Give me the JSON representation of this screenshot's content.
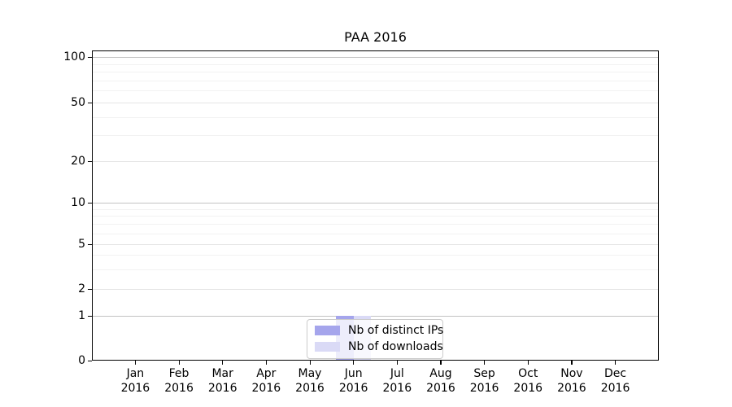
{
  "chart_data": {
    "type": "bar",
    "title": "PAA 2016",
    "categories": [
      "Jan 2016",
      "Feb 2016",
      "Mar 2016",
      "Apr 2016",
      "May 2016",
      "Jun 2016",
      "Jul 2016",
      "Aug 2016",
      "Sep 2016",
      "Oct 2016",
      "Nov 2016",
      "Dec 2016"
    ],
    "series": [
      {
        "name": "Nb of distinct IPs",
        "color": "#a5a5ec",
        "values": [
          0,
          0,
          0,
          0,
          0,
          1,
          0,
          0,
          0,
          0,
          0,
          0
        ]
      },
      {
        "name": "Nb of downloads",
        "color": "#dadaf6",
        "values": [
          0,
          0,
          0,
          0,
          0,
          1,
          0,
          0,
          0,
          0,
          0,
          0
        ]
      }
    ],
    "xlabel": "",
    "ylabel": "",
    "yscale": "symlog",
    "ylim": [
      0,
      110
    ],
    "y_ticks": [
      0,
      1,
      2,
      5,
      10,
      20,
      50,
      100
    ],
    "y_decade_ticks": [
      1,
      10,
      100
    ],
    "y_minor_ticks": [
      3,
      4,
      6,
      7,
      8,
      9,
      30,
      40,
      60,
      70,
      80,
      90
    ],
    "grid": true,
    "legend_position": "lower center"
  }
}
